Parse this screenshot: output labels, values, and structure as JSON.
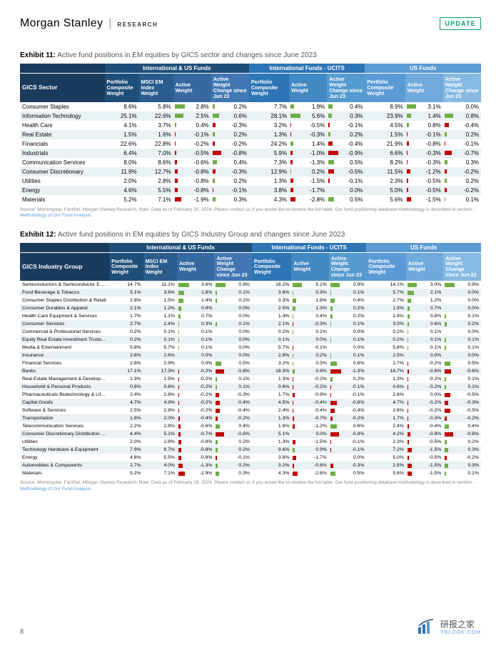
{
  "brand": {
    "name": "Morgan Stanley",
    "sub": "RESEARCH",
    "badge": "UPDATE"
  },
  "exhibit11": {
    "caption_bold": "Exhibit 11:",
    "caption": "Active fund positions in EM equities by GICS sector and changes since June 2023",
    "group_headers": [
      "International & US Funds",
      "International Funds - UCITS",
      "US Funds"
    ],
    "group_colors": [
      "#1f4e79",
      "#2e75b6",
      "#5b9bd5"
    ],
    "rowhead_label": "GICS Sector",
    "rowhead_bg": "#1a3b5c",
    "col_sets": [
      {
        "bg": "#1f4e79",
        "cols": [
          "Portfolio Composite Weight",
          "MSCI EM Index Weight",
          "Active Weight",
          "Active Weight Change since Jun 23"
        ]
      },
      {
        "bg": "#2e75b6",
        "cols": [
          "Portfolio Composite Weight",
          "Active Weight",
          "Active Weight Change since Jun 23"
        ]
      },
      {
        "bg": "#5b9bd5",
        "cols": [
          "Portfolio Composite Weight",
          "Active Weight",
          "Active Weight Change since Jun 23"
        ]
      }
    ],
    "col_shades": {
      "set1": [
        "#1f4e79",
        "#2a5c8c",
        "#3569a0",
        "#4277b3"
      ],
      "set2": [
        "#2e75b6",
        "#4288c2",
        "#569bcf"
      ],
      "set3": [
        "#5b9bd5",
        "#70aadc",
        "#86bae3"
      ]
    },
    "rows": [
      [
        "Consumer Staples",
        "8.6%",
        "5.8%",
        "2.8%",
        "0.2%",
        "7.7%",
        "1.9%",
        "0.4%",
        "8.9%",
        "3.1%",
        "0.0%"
      ],
      [
        "Information Technology",
        "25.1%",
        "22.6%",
        "2.5%",
        "0.6%",
        "28.1%",
        "5.6%",
        "0.3%",
        "23.9%",
        "1.4%",
        "0.8%"
      ],
      [
        "Health Care",
        "4.1%",
        "3.7%",
        "0.4%",
        "-0.3%",
        "3.2%",
        "-0.5%",
        "-0.1%",
        "4.5%",
        "0.8%",
        "-0.4%"
      ],
      [
        "Real Estate",
        "1.5%",
        "1.6%",
        "-0.1%",
        "0.2%",
        "1.3%",
        "-0.3%",
        "0.2%",
        "1.5%",
        "-0.1%",
        "0.2%"
      ],
      [
        "Financials",
        "22.6%",
        "22.8%",
        "-0.2%",
        "-0.2%",
        "24.2%",
        "1.4%",
        "-0.4%",
        "21.9%",
        "-0.8%",
        "-0.1%"
      ],
      [
        "Industrials",
        "6.4%",
        "7.0%",
        "-0.5%",
        "-0.8%",
        "5.9%",
        "-1.0%",
        "-0.9%",
        "6.6%",
        "-0.3%",
        "-0.7%"
      ],
      [
        "Communication Services",
        "8.0%",
        "8.6%",
        "-0.6%",
        "0.4%",
        "7.3%",
        "-1.3%",
        "0.5%",
        "8.2%",
        "-0.3%",
        "0.3%"
      ],
      [
        "Consumer Discretionary",
        "11.9%",
        "12.7%",
        "-0.8%",
        "-0.3%",
        "12.9%",
        "0.2%",
        "-0.5%",
        "11.5%",
        "-1.2%",
        "-0.2%"
      ],
      [
        "Utilities",
        "2.0%",
        "2.8%",
        "-0.8%",
        "0.2%",
        "1.3%",
        "-1.5%",
        "-0.1%",
        "2.3%",
        "-0.5%",
        "0.2%"
      ],
      [
        "Energy",
        "4.6%",
        "5.5%",
        "-0.8%",
        "-0.1%",
        "3.8%",
        "-1.7%",
        "0.0%",
        "5.0%",
        "-0.5%",
        "-0.2%"
      ],
      [
        "Materials",
        "5.2%",
        "7.1%",
        "-1.9%",
        "0.3%",
        "4.3%",
        "-2.8%",
        "0.5%",
        "5.6%",
        "-1.5%",
        "0.1%"
      ]
    ],
    "bar_cols": [
      3,
      4,
      6,
      7,
      9,
      10
    ],
    "bar_scale": {
      "3": 3.0,
      "4": 1.0,
      "6": 6.0,
      "7": 1.0,
      "9": 3.5,
      "10": 1.0
    },
    "pos_color": "#70ad47",
    "neg_color": "#c00000"
  },
  "exhibit12": {
    "caption_bold": "Exhibit 12:",
    "caption": "Active fund positions in EM equities by GICS Industry Group and changes since June 2023",
    "rowhead_label": "GICS Industry Group",
    "rows": [
      [
        "Semiconductors & Semiconductor Equipment",
        "14.7%",
        "11.1%",
        "3.6%",
        "0.9%",
        "16.2%",
        "5.1%",
        "0.9%",
        "14.1%",
        "3.0%",
        "0.9%"
      ],
      [
        "Food Beverage & Tobacco",
        "5.1%",
        "3.6%",
        "1.6%",
        "0.1%",
        "3.8%",
        "0.3%",
        "0.1%",
        "5.7%",
        "2.1%",
        "0.0%"
      ],
      [
        "Consumer Staples Distribution & Retail",
        "2.8%",
        "1.5%",
        "1.4%",
        "0.1%",
        "3.3%",
        "1.8%",
        "0.4%",
        "2.7%",
        "1.2%",
        "0.0%"
      ],
      [
        "Consumer Durables & Apparel",
        "2.1%",
        "1.2%",
        "0.9%",
        "0.0%",
        "2.5%",
        "1.3%",
        "0.2%",
        "1.9%",
        "0.7%",
        "0.0%"
      ],
      [
        "Health Care Equipment & Services",
        "1.7%",
        "1.1%",
        "0.7%",
        "0.0%",
        "1.4%",
        "0.4%",
        "0.2%",
        "1.9%",
        "0.8%",
        "0.1%"
      ],
      [
        "Consumer Services",
        "2.7%",
        "2.4%",
        "0.3%",
        "0.1%",
        "2.1%",
        "-0.3%",
        "0.1%",
        "3.0%",
        "0.6%",
        "0.2%"
      ],
      [
        "Commercial & Professional Services",
        "0.2%",
        "0.1%",
        "0.1%",
        "0.0%",
        "0.2%",
        "0.1%",
        "0.0%",
        "0.2%",
        "0.1%",
        "0.0%"
      ],
      [
        "Equity Real Estate Investment Trusts (REITs)",
        "0.2%",
        "0.1%",
        "0.1%",
        "0.0%",
        "0.1%",
        "0.0%",
        "0.1%",
        "0.2%",
        "0.1%",
        "0.1%"
      ],
      [
        "Media & Entertainment",
        "5.8%",
        "5.7%",
        "0.1%",
        "0.0%",
        "5.7%",
        "-0.1%",
        "0.0%",
        "5.8%",
        "0.1%",
        "0.1%"
      ],
      [
        "Insurance",
        "2.6%",
        "2.6%",
        "0.0%",
        "0.0%",
        "2.8%",
        "0.2%",
        "0.1%",
        "2.5%",
        "0.0%",
        "0.0%"
      ],
      [
        "Financial Services",
        "2.8%",
        "2.9%",
        "0.0%",
        "0.5%",
        "3.2%",
        "0.3%",
        "0.6%",
        "2.7%",
        "-0.2%",
        "0.5%"
      ],
      [
        "Banks",
        "17.1%",
        "17.3%",
        "-0.2%",
        "-0.8%",
        "18.3%",
        "0.9%",
        "-1.3%",
        "16.7%",
        "-0.6%",
        "-0.6%"
      ],
      [
        "Real Estate Management & Development",
        "1.3%",
        "1.5%",
        "-0.2%",
        "0.1%",
        "1.3%",
        "-0.2%",
        "0.2%",
        "1.3%",
        "-0.2%",
        "0.1%"
      ],
      [
        "Household & Personal Products",
        "0.6%",
        "0.8%",
        "-0.2%",
        "0.1%",
        "0.6%",
        "-0.2%",
        "-0.1%",
        "0.6%",
        "-0.2%",
        "0.1%"
      ],
      [
        "Pharmaceuticals Biotechnology & Life Sciences",
        "2.4%",
        "2.6%",
        "-0.2%",
        "-0.3%",
        "1.7%",
        "-0.9%",
        "-0.1%",
        "2.6%",
        "0.0%",
        "-0.5%"
      ],
      [
        "Capital Goods",
        "4.7%",
        "4.9%",
        "-0.2%",
        "-0.4%",
        "4.5%",
        "-0.4%",
        "-0.6%",
        "4.7%",
        "-0.2%",
        "-0.3%"
      ],
      [
        "Software & Services",
        "2.5%",
        "2.8%",
        "-0.2%",
        "-0.4%",
        "2.4%",
        "-0.4%",
        "-0.4%",
        "2.6%",
        "-0.2%",
        "-0.5%"
      ],
      [
        "Transportation",
        "1.6%",
        "2.0%",
        "-0.4%",
        "-0.2%",
        "1.3%",
        "-0.7%",
        "-0.2%",
        "1.7%",
        "-0.3%",
        "-0.2%"
      ],
      [
        "Telecommunication Services",
        "2.2%",
        "2.8%",
        "-0.6%",
        "0.4%",
        "1.6%",
        "-1.2%",
        "0.6%",
        "2.4%",
        "-0.4%",
        "0.4%"
      ],
      [
        "Consumer Discretionary Distribution & Retail",
        "4.4%",
        "5.1%",
        "-0.7%",
        "-0.8%",
        "5.1%",
        "0.0%",
        "-0.8%",
        "4.2%",
        "-0.9%",
        "-0.8%"
      ],
      [
        "Utilities",
        "2.0%",
        "2.8%",
        "-0.8%",
        "0.2%",
        "1.3%",
        "-1.5%",
        "-0.1%",
        "2.3%",
        "-0.5%",
        "0.2%"
      ],
      [
        "Technology Hardware & Equipment",
        "7.9%",
        "8.7%",
        "-0.8%",
        "0.2%",
        "9.6%",
        "0.9%",
        "-0.1%",
        "7.2%",
        "-1.5%",
        "0.3%"
      ],
      [
        "Energy",
        "4.6%",
        "5.5%",
        "-0.8%",
        "-0.1%",
        "3.8%",
        "-1.7%",
        "0.0%",
        "5.0%",
        "-0.5%",
        "-0.2%"
      ],
      [
        "Automobiles & Components",
        "2.7%",
        "4.0%",
        "-1.3%",
        "0.2%",
        "3.2%",
        "-0.8%",
        "-0.3%",
        "2.5%",
        "-1.5%",
        "0.3%"
      ],
      [
        "Materials",
        "5.2%",
        "7.1%",
        "-1.9%",
        "0.3%",
        "4.3%",
        "-2.8%",
        "0.5%",
        "5.6%",
        "-1.5%",
        "0.1%"
      ]
    ]
  },
  "source_note": "Source: Morningstar, FactSet, Morgan Stanley Research. Note: Data as of February 29, 2024. Please contact us if you would like to receive the full table. Our fund positioning database methodology is described in section - ",
  "source_link": "Methodology of Our Fund Analysis.",
  "page_num": "8",
  "watermark": {
    "text": "研报之家",
    "sub": "YBLOOK.COM"
  }
}
